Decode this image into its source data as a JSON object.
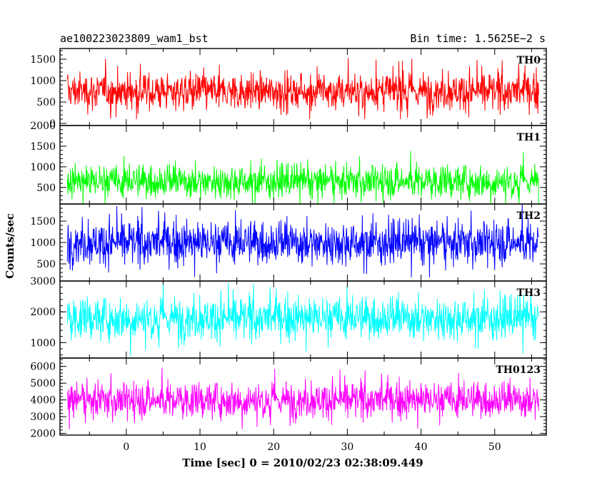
{
  "header": {
    "left_title": "ae100223023809_wam1_bst",
    "right_title": "Bin time: 1.5625E−2 s"
  },
  "chart_data": {
    "type": "line",
    "xlabel": "Time [sec] 0 = 2010/02/23 02:38:09.449",
    "ylabel": "Counts/sec",
    "xlim": [
      -9,
      57
    ],
    "x_ticks": [
      0,
      10,
      20,
      30,
      40,
      50
    ],
    "x_tick_labels": [
      "0",
      "10",
      "20",
      "30",
      "40",
      "50"
    ],
    "x_data_range": [
      -8,
      56
    ],
    "panels": [
      {
        "name": "TH0",
        "color": "#ff0000",
        "ylim": [
          -50,
          1750
        ],
        "y_ticks": [
          0,
          500,
          1000,
          1500
        ],
        "y_tick_labels": [
          "0",
          "500",
          "1000",
          "1500"
        ],
        "mean": 750,
        "low": 200,
        "high": 1550
      },
      {
        "name": "TH1",
        "color": "#00ff00",
        "ylim": [
          100,
          2000
        ],
        "y_ticks": [
          500,
          1000,
          1500,
          2000
        ],
        "y_tick_labels": [
          "500",
          "1000",
          "1500",
          "2000"
        ],
        "mean": 650,
        "low": 150,
        "high": 1400
      },
      {
        "name": "TH2",
        "color": "#0000ff",
        "ylim": [
          100,
          1900
        ],
        "y_ticks": [
          500,
          1000,
          1500
        ],
        "y_tick_labels": [
          "500",
          "1000",
          "1500"
        ],
        "mean": 1000,
        "low": 300,
        "high": 1850
      },
      {
        "name": "TH3",
        "color": "#00ffff",
        "ylim": [
          500,
          3000
        ],
        "y_ticks": [
          1000,
          2000,
          3000
        ],
        "y_tick_labels": [
          "1000",
          "2000",
          "3000"
        ],
        "mean": 1800,
        "low": 700,
        "high": 2800
      },
      {
        "name": "TH0123",
        "color": "#ff00ff",
        "ylim": [
          1900,
          6500
        ],
        "y_ticks": [
          2000,
          3000,
          4000,
          5000,
          6000
        ],
        "y_tick_labels": [
          "2000",
          "3000",
          "4000",
          "5000",
          "6000"
        ],
        "mean": 4000,
        "low": 2500,
        "high": 5800
      }
    ]
  }
}
